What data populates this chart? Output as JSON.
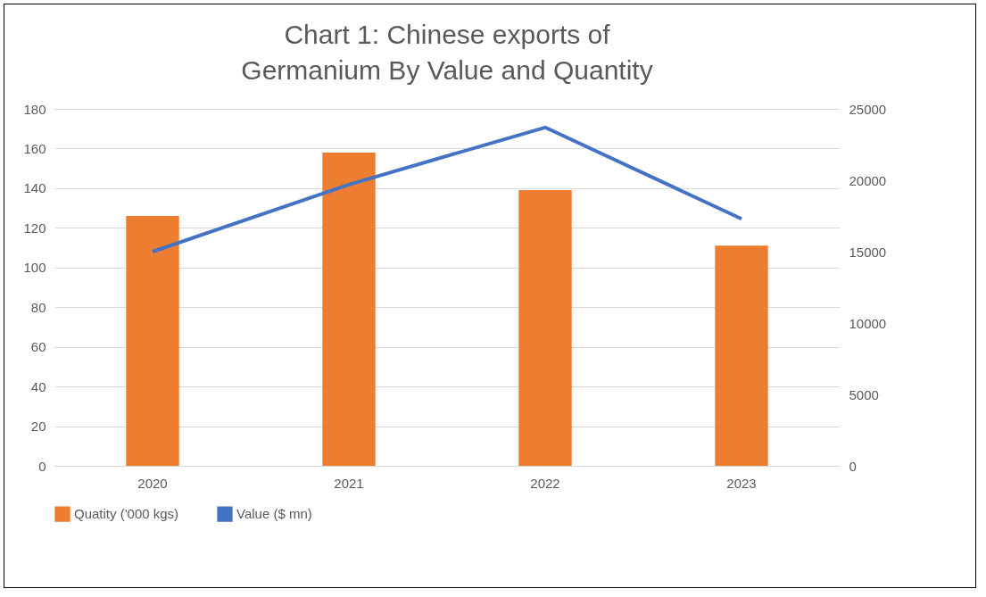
{
  "chart_data": {
    "type": "bar",
    "title": "Chart 1: Chinese exports of Germanium By Value and Quantity",
    "categories": [
      "2020",
      "2021",
      "2022",
      "2023"
    ],
    "series": [
      {
        "name": "Quatity ('000 kgs)",
        "color": "#ed7d31",
        "values": [
          126,
          158,
          139,
          111
        ]
      },
      {
        "name": "Value ($ mn)",
        "type": "line",
        "axis": "y2",
        "color": "#4472c4",
        "values": [
          15000,
          19700,
          23700,
          17300
        ]
      }
    ],
    "ylim": [
      0,
      180
    ],
    "yticks": [
      0,
      20,
      40,
      60,
      80,
      100,
      120,
      140,
      160,
      180
    ],
    "y2lim": [
      0,
      25000
    ],
    "y2ticks": [
      0,
      5000,
      10000,
      15000,
      20000,
      25000
    ],
    "grid": "y",
    "legend": "bottom"
  }
}
